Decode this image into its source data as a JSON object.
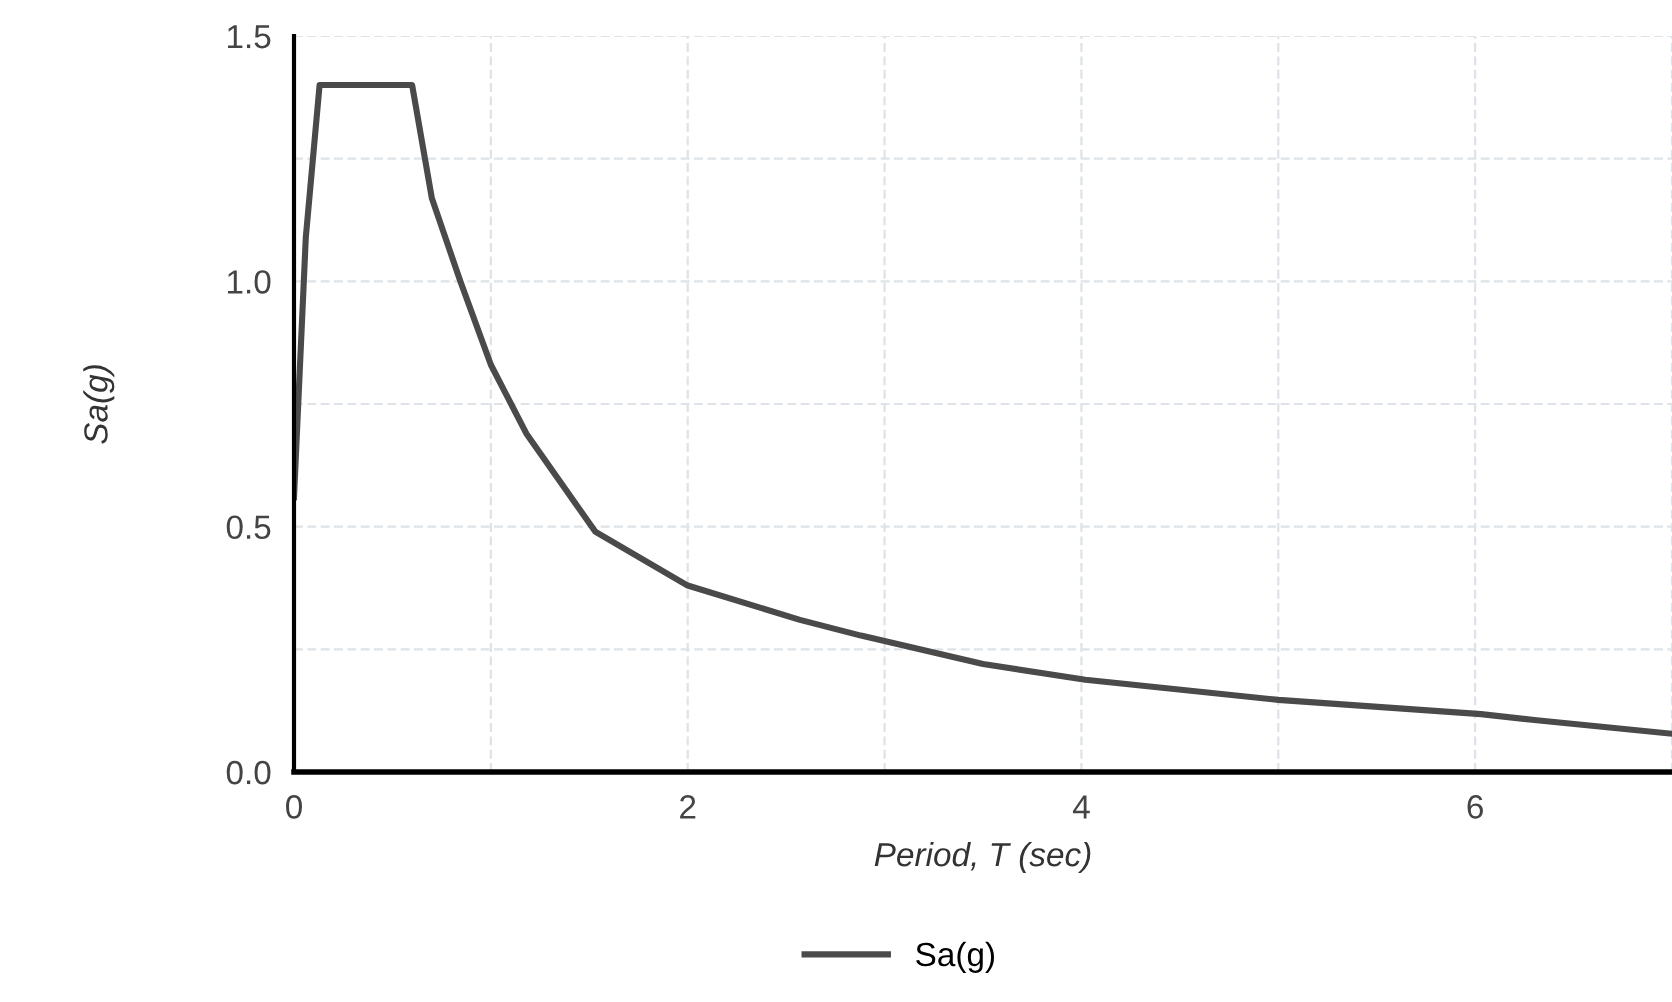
{
  "chart_data": {
    "type": "line",
    "xlabel": "Period, T (sec)",
    "ylabel": "Sa(g)",
    "x": [
      0,
      0.06,
      0.13,
      0.6,
      0.7,
      0.845,
      1.0,
      1.18,
      1.53,
      2.0,
      2.57,
      2.88,
      3.5,
      4.02,
      5.0,
      6.03,
      6.3,
      7.0
    ],
    "series": [
      {
        "name": "Sa(g)",
        "color": "#4a4a4a",
        "values": [
          0.56,
          1.09,
          1.4,
          1.4,
          1.17,
          1.0,
          0.83,
          0.69,
          0.49,
          0.38,
          0.31,
          0.278,
          0.22,
          0.188,
          0.147,
          0.118,
          0.106,
          0.078
        ]
      }
    ],
    "xlim": [
      0,
      7
    ],
    "ylim": [
      0,
      1.5
    ],
    "xticks": [
      0,
      {
        "value": 1,
        "label": null
      },
      2,
      {
        "value": 3,
        "label": null
      },
      4,
      {
        "value": 5,
        "label": null
      },
      6,
      {
        "value": 7,
        "label": null
      }
    ],
    "yticks": [
      {
        "value": 0,
        "label": "0.0"
      },
      {
        "value": 0.25,
        "label": null
      },
      {
        "value": 0.5,
        "label": "0.5"
      },
      {
        "value": 0.75,
        "label": null
      },
      {
        "value": 1.0,
        "label": "1.0"
      },
      {
        "value": 1.25,
        "label": null
      },
      {
        "value": 1.5,
        "label": "1.5"
      }
    ],
    "grid": true,
    "legend": "bottom",
    "marker": "none",
    "line_style": "solid"
  }
}
